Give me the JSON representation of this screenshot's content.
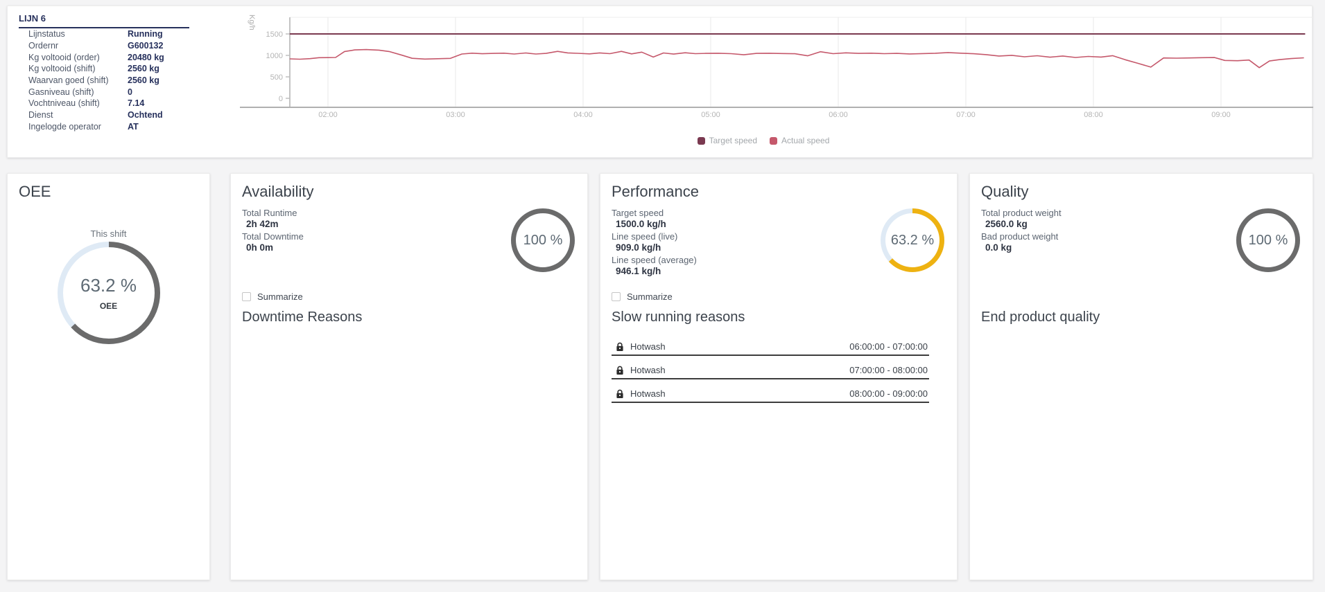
{
  "line_info": {
    "title": "LIJN 6",
    "rows": [
      {
        "label": "Lijnstatus",
        "value": "Running"
      },
      {
        "label": "Ordernr",
        "value": "G600132"
      },
      {
        "label": "Kg voltooid (order)",
        "value": "20480 kg"
      },
      {
        "label": "Kg voltooid (shift)",
        "value": "2560 kg"
      },
      {
        "label": "Waarvan goed (shift)",
        "value": "2560 kg"
      },
      {
        "label": "Gasniveau (shift)",
        "value": "0"
      },
      {
        "label": "Vochtniveau (shift)",
        "value": "7.14"
      },
      {
        "label": "Dienst",
        "value": "Ochtend"
      },
      {
        "label": "Ingelogde operator",
        "value": "AT"
      }
    ]
  },
  "chart_data": {
    "type": "line",
    "title": "",
    "xlabel": "",
    "ylabel": "Kg/h",
    "x_unit": "hour of day (decimal)",
    "xlim_hours": [
      1.7,
      9.72
    ],
    "ylim": [
      0,
      1890
    ],
    "y_ticks": [
      0,
      500,
      1000,
      1500
    ],
    "x_tick_hours": [
      2,
      3,
      4,
      5,
      6,
      7,
      8,
      9
    ],
    "x_tick_labels": [
      "02:00",
      "03:00",
      "04:00",
      "05:00",
      "06:00",
      "07:00",
      "08:00",
      "09:00"
    ],
    "grid": "vertical",
    "legend_position": "bottom",
    "series": [
      {
        "name": "Target speed",
        "color": "#7a3950",
        "x": [
          1.7,
          9.66
        ],
        "values": [
          1500,
          1500
        ]
      },
      {
        "name": "Actual speed",
        "color": "#c5586b",
        "x": [
          1.7,
          1.78,
          1.86,
          1.93,
          2.0,
          2.06,
          2.13,
          2.21,
          2.3,
          2.4,
          2.48,
          2.58,
          2.66,
          2.76,
          2.86,
          2.96,
          3.05,
          3.13,
          3.21,
          3.3,
          3.38,
          3.46,
          3.55,
          3.63,
          3.71,
          3.8,
          3.88,
          3.96,
          4.05,
          4.13,
          4.21,
          4.3,
          4.38,
          4.46,
          4.55,
          4.63,
          4.71,
          4.8,
          4.88,
          4.96,
          5.06,
          5.16,
          5.26,
          5.36,
          5.46,
          5.56,
          5.66,
          5.76,
          5.86,
          5.96,
          6.06,
          6.16,
          6.26,
          6.36,
          6.46,
          6.56,
          6.66,
          6.76,
          6.86,
          6.96,
          7.06,
          7.16,
          7.26,
          7.36,
          7.46,
          7.56,
          7.66,
          7.76,
          7.86,
          7.96,
          8.06,
          8.15,
          8.25,
          8.35,
          8.45,
          8.55,
          8.65,
          8.75,
          8.85,
          8.95,
          9.03,
          9.13,
          9.22,
          9.3,
          9.38,
          9.46,
          9.55,
          9.65
        ],
        "values": [
          920,
          912,
          924,
          946,
          948,
          952,
          1090,
          1128,
          1136,
          1122,
          1090,
          1005,
          932,
          915,
          922,
          930,
          1032,
          1052,
          1038,
          1046,
          1052,
          1032,
          1056,
          1032,
          1046,
          1094,
          1058,
          1048,
          1036,
          1058,
          1040,
          1094,
          1036,
          1076,
          962,
          1056,
          1030,
          1062,
          1040,
          1046,
          1050,
          1040,
          1014,
          1046,
          1050,
          1044,
          1038,
          990,
          1086,
          1040,
          1060,
          1046,
          1052,
          1040,
          1046,
          1034,
          1042,
          1050,
          1066,
          1052,
          1038,
          1018,
          985,
          1002,
          968,
          992,
          958,
          986,
          952,
          976,
          962,
          994,
          898,
          815,
          728,
          940,
          936,
          940,
          946,
          950,
          882,
          876,
          892,
          715,
          870,
          902,
          926,
          944
        ]
      }
    ]
  },
  "cards": {
    "oee": {
      "title": "OEE",
      "gauge_label": "This shift",
      "gauge": {
        "percent": 63.2,
        "text": "63.2 %",
        "sub": "OEE",
        "color": "#6b6b6b",
        "track": "#dfeaf5"
      }
    },
    "availability": {
      "title": "Availability",
      "stats": [
        {
          "label": "Total Runtime",
          "value": "2h 42m"
        },
        {
          "label": "Total Downtime",
          "value": "0h 0m"
        }
      ],
      "gauge": {
        "percent": 100,
        "text": "100 %",
        "color": "#6b6b6b",
        "track": "#dfeaf5"
      },
      "summarize_label": "Summarize",
      "section_title": "Downtime Reasons",
      "reasons": []
    },
    "performance": {
      "title": "Performance",
      "stats": [
        {
          "label": "Target speed",
          "value": "1500.0 kg/h"
        },
        {
          "label": "Line speed (live)",
          "value": "909.0 kg/h"
        },
        {
          "label": "Line speed (average)",
          "value": "946.1 kg/h"
        }
      ],
      "gauge": {
        "percent": 63.2,
        "text": "63.2 %",
        "color": "#eeb211",
        "track": "#dfeaf5"
      },
      "summarize_label": "Summarize",
      "section_title": "Slow running reasons",
      "reasons": [
        {
          "name": "Hotwash",
          "time": "06:00:00 - 07:00:00"
        },
        {
          "name": "Hotwash",
          "time": "07:00:00 - 08:00:00"
        },
        {
          "name": "Hotwash",
          "time": "08:00:00 - 09:00:00"
        }
      ]
    },
    "quality": {
      "title": "Quality",
      "stats": [
        {
          "label": "Total product weight",
          "value": "2560.0 kg"
        },
        {
          "label": "Bad product weight",
          "value": "0.0 kg"
        }
      ],
      "gauge": {
        "percent": 100,
        "text": "100 %",
        "color": "#6b6b6b",
        "track": "#dfeaf5"
      },
      "section_title": "End product quality"
    }
  }
}
